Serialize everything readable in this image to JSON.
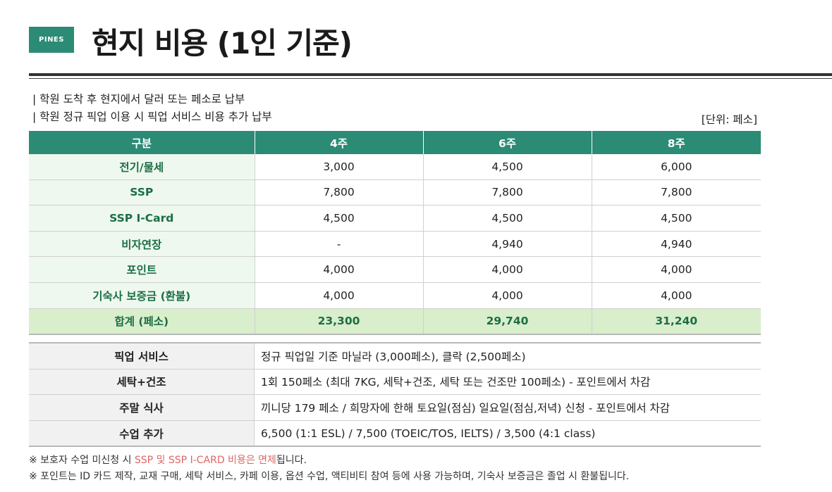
{
  "header": {
    "badge": "PINES",
    "title": "현지 비용 (1인 기준)"
  },
  "notes": [
    "| 학원 도착 후 현지에서 달러 또는 페소로 납부",
    "| 학원 정규 픽업 이용 시 픽업 서비스 비용 추가 납부"
  ],
  "unit": "[단위: 페소]",
  "cost_table": {
    "headers": [
      "구분",
      "4주",
      "6주",
      "8주"
    ],
    "rows": [
      {
        "label": "전기/물세",
        "w4": "3,000",
        "w6": "4,500",
        "w8": "6,000"
      },
      {
        "label": "SSP",
        "w4": "7,800",
        "w6": "7,800",
        "w8": "7,800"
      },
      {
        "label": "SSP I-Card",
        "w4": "4,500",
        "w6": "4,500",
        "w8": "4,500"
      },
      {
        "label": "비자연장",
        "w4": "-",
        "w6": "4,940",
        "w8": "4,940"
      },
      {
        "label": "포인트",
        "w4": "4,000",
        "w6": "4,000",
        "w8": "4,000"
      },
      {
        "label": "기숙사 보증금 (환불)",
        "w4": "4,000",
        "w6": "4,000",
        "w8": "4,000"
      }
    ],
    "total": {
      "label": "합계 (페소)",
      "w4": "23,300",
      "w6": "29,740",
      "w8": "31,240"
    }
  },
  "services": [
    {
      "label": "픽업 서비스",
      "value": "정규 픽업일 기준 마닐라 (3,000페소), 클락 (2,500페소)"
    },
    {
      "label": "세탁+건조",
      "value": "1회 150페소 (최대 7KG, 세탁+건조, 세탁 또는 건조만 100페소) - 포인트에서 차감"
    },
    {
      "label": "주말 식사",
      "value": "끼니당 179 페소 / 희망자에 한해 토요일(점심) 일요일(점심,저녁) 신청 - 포인트에서 차감"
    },
    {
      "label": "수업 추가",
      "value": "6,500 (1:1 ESL) / 7,500 (TOEIC/TOS, IELTS) / 3,500 (4:1 class)"
    }
  ],
  "footnotes": {
    "line1_prefix": "※ 보호자 수업 미신청 시 ",
    "line1_highlight": "SSP 및 SSP I-CARD 비용은 면제",
    "line1_suffix": "됩니다.",
    "line2": "※ 포인트는 ID 카드 제작, 교재 구매, 세탁 서비스, 카페 이용, 옵션 수업, 액티비티 참여 등에 사용 가능하며, 기숙사 보증금은 졸업 시 환불됩니다."
  },
  "colors": {
    "accent": "#2b8b74",
    "label_green": "#1c6e46",
    "total_bg": "#d9eecb",
    "highlight_red": "#e06565"
  }
}
